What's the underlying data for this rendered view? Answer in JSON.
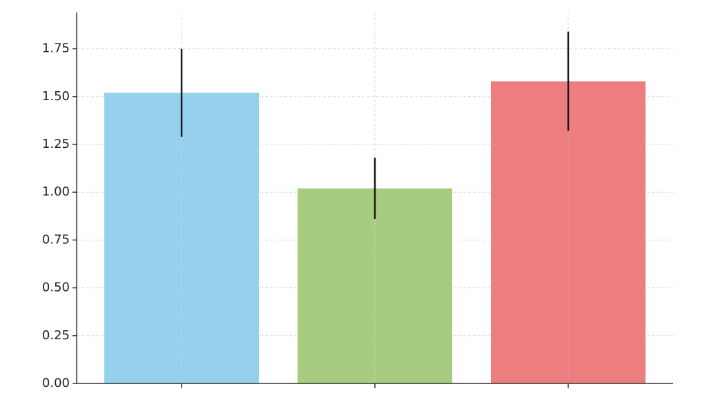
{
  "chart_data": {
    "type": "bar",
    "categories": [
      null,
      null,
      null
    ],
    "values": [
      1.52,
      1.02,
      1.58
    ],
    "errors": [
      0.23,
      0.16,
      0.26
    ],
    "colors": [
      "#95d0ec",
      "#a6cd7f",
      "#ee7d7f"
    ],
    "error_color": "#1a1a1a",
    "ylim": [
      0,
      1.94
    ],
    "yticks": [
      {
        "value": 0,
        "label": "0.00"
      },
      {
        "value": 0.25,
        "label": "0.25"
      },
      {
        "value": 0.5,
        "label": "0.50"
      },
      {
        "value": 0.75,
        "label": "0.75"
      },
      {
        "value": 1,
        "label": "1.00"
      },
      {
        "value": 1.25,
        "label": "1.25"
      },
      {
        "value": 1.5,
        "label": "1.50"
      },
      {
        "value": 1.75,
        "label": "1.75"
      }
    ],
    "grid": true
  }
}
